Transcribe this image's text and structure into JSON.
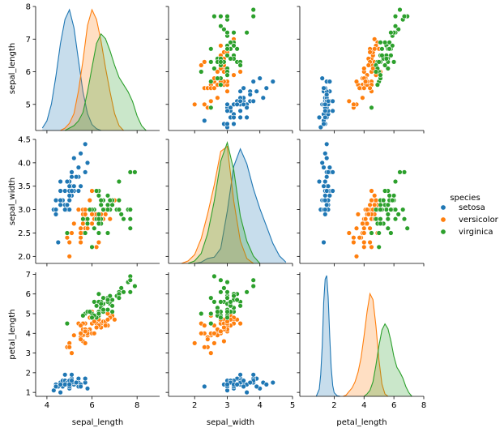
{
  "chart_data": {
    "type": "scatter",
    "variables": [
      "sepal_length",
      "sepal_width",
      "petal_length"
    ],
    "hue": "species",
    "legend": {
      "title": "species",
      "placement": "right"
    },
    "axes": {
      "sepal_length": {
        "label": "sepal_length",
        "lim": [
          3.5,
          9.0
        ],
        "ticks": [
          4,
          6,
          8
        ],
        "ytick_lim": [
          4.2,
          8.0
        ],
        "yticks": [
          5,
          6,
          7,
          8
        ]
      },
      "sepal_width": {
        "label": "sepal_width",
        "lim": [
          1.2,
          5.0
        ],
        "ticks": [
          2,
          3,
          4,
          5
        ],
        "ytick_lim": [
          1.85,
          4.5
        ],
        "yticks": [
          2.0,
          2.5,
          3.0,
          3.5,
          4.0,
          4.5
        ],
        "ytick_labels": [
          "2.0",
          "2.5",
          "3.0",
          "3.5",
          "4.0",
          "4.5"
        ]
      },
      "petal_length": {
        "label": "petal_length",
        "lim": [
          -0.3,
          8.0
        ],
        "ticks": [
          2,
          4,
          6,
          8
        ],
        "ytick_lim": [
          0.8,
          7.1
        ],
        "yticks": [
          1,
          2,
          3,
          4,
          5,
          6,
          7
        ]
      }
    },
    "series": [
      {
        "name": "setosa",
        "color": "#1f77b4",
        "points": [
          [
            5.1,
            3.5,
            1.4
          ],
          [
            4.9,
            3.0,
            1.4
          ],
          [
            4.7,
            3.2,
            1.3
          ],
          [
            4.6,
            3.1,
            1.5
          ],
          [
            5.0,
            3.6,
            1.4
          ],
          [
            5.4,
            3.9,
            1.7
          ],
          [
            4.6,
            3.4,
            1.4
          ],
          [
            5.0,
            3.4,
            1.5
          ],
          [
            4.4,
            2.9,
            1.4
          ],
          [
            4.9,
            3.1,
            1.5
          ],
          [
            5.4,
            3.7,
            1.5
          ],
          [
            4.8,
            3.4,
            1.6
          ],
          [
            4.8,
            3.0,
            1.4
          ],
          [
            4.3,
            3.0,
            1.1
          ],
          [
            5.8,
            4.0,
            1.2
          ],
          [
            5.7,
            4.4,
            1.5
          ],
          [
            5.4,
            3.9,
            1.3
          ],
          [
            5.1,
            3.5,
            1.4
          ],
          [
            5.7,
            3.8,
            1.7
          ],
          [
            5.1,
            3.8,
            1.5
          ],
          [
            5.4,
            3.4,
            1.7
          ],
          [
            5.1,
            3.7,
            1.5
          ],
          [
            4.6,
            3.6,
            1.0
          ],
          [
            5.1,
            3.3,
            1.7
          ],
          [
            4.8,
            3.4,
            1.9
          ],
          [
            5.0,
            3.0,
            1.6
          ],
          [
            5.0,
            3.4,
            1.6
          ],
          [
            5.2,
            3.5,
            1.5
          ],
          [
            5.2,
            3.4,
            1.4
          ],
          [
            4.7,
            3.2,
            1.6
          ],
          [
            4.8,
            3.1,
            1.6
          ],
          [
            5.4,
            3.4,
            1.5
          ],
          [
            5.2,
            4.1,
            1.5
          ],
          [
            5.5,
            4.2,
            1.4
          ],
          [
            4.9,
            3.1,
            1.5
          ],
          [
            5.0,
            3.2,
            1.2
          ],
          [
            5.5,
            3.5,
            1.3
          ],
          [
            4.9,
            3.6,
            1.4
          ],
          [
            4.4,
            3.0,
            1.3
          ],
          [
            5.1,
            3.4,
            1.5
          ],
          [
            5.0,
            3.5,
            1.3
          ],
          [
            4.5,
            2.3,
            1.3
          ],
          [
            4.4,
            3.2,
            1.3
          ],
          [
            5.0,
            3.5,
            1.6
          ],
          [
            5.1,
            3.8,
            1.9
          ],
          [
            4.8,
            3.0,
            1.4
          ],
          [
            5.1,
            3.8,
            1.6
          ],
          [
            4.6,
            3.2,
            1.4
          ],
          [
            5.3,
            3.7,
            1.5
          ],
          [
            5.0,
            3.3,
            1.4
          ]
        ],
        "kde": {
          "sepal_length": {
            "x": [
              3.8,
              4.0,
              4.2,
              4.4,
              4.6,
              4.8,
              5.0,
              5.2,
              5.4,
              5.6,
              5.8,
              6.0,
              6.2,
              6.4
            ],
            "y": [
              0.02,
              0.08,
              0.22,
              0.45,
              0.72,
              0.92,
              1.0,
              0.85,
              0.58,
              0.32,
              0.14,
              0.05,
              0.015,
              0.0
            ]
          },
          "sepal_width": {
            "x": [
              2.0,
              2.2,
              2.4,
              2.6,
              2.8,
              3.0,
              3.2,
              3.4,
              3.6,
              3.8,
              4.0,
              4.2,
              4.4,
              4.6,
              4.8
            ],
            "y": [
              0.0,
              0.01,
              0.04,
              0.05,
              0.12,
              0.42,
              0.78,
              0.92,
              0.8,
              0.6,
              0.44,
              0.3,
              0.16,
              0.06,
              0.01
            ]
          },
          "petal_length": {
            "x": [
              0.8,
              1.0,
              1.1,
              1.2,
              1.3,
              1.4,
              1.5,
              1.6,
              1.7,
              1.8,
              1.9,
              2.0,
              2.2,
              2.4
            ],
            "y": [
              0.0,
              0.06,
              0.18,
              0.42,
              0.78,
              0.97,
              1.0,
              0.82,
              0.5,
              0.24,
              0.09,
              0.03,
              0.005,
              0.0
            ]
          }
        }
      },
      {
        "name": "versicolor",
        "color": "#ff7f0e",
        "points": [
          [
            7.0,
            3.2,
            4.7
          ],
          [
            6.4,
            3.2,
            4.5
          ],
          [
            6.9,
            3.1,
            4.9
          ],
          [
            5.5,
            2.3,
            4.0
          ],
          [
            6.5,
            2.8,
            4.6
          ],
          [
            5.7,
            2.8,
            4.5
          ],
          [
            6.3,
            3.3,
            4.7
          ],
          [
            4.9,
            2.4,
            3.3
          ],
          [
            6.6,
            2.9,
            4.6
          ],
          [
            5.2,
            2.7,
            3.9
          ],
          [
            5.0,
            2.0,
            3.5
          ],
          [
            5.9,
            3.0,
            4.2
          ],
          [
            6.0,
            2.2,
            4.0
          ],
          [
            6.1,
            2.9,
            4.7
          ],
          [
            5.6,
            2.9,
            3.6
          ],
          [
            6.7,
            3.1,
            4.4
          ],
          [
            5.6,
            3.0,
            4.5
          ],
          [
            5.8,
            2.7,
            4.1
          ],
          [
            6.2,
            2.2,
            4.5
          ],
          [
            5.6,
            2.5,
            3.9
          ],
          [
            5.9,
            3.2,
            4.8
          ],
          [
            6.1,
            2.8,
            4.0
          ],
          [
            6.3,
            2.5,
            4.9
          ],
          [
            6.1,
            2.8,
            4.7
          ],
          [
            6.4,
            2.9,
            4.3
          ],
          [
            6.6,
            3.0,
            4.4
          ],
          [
            6.8,
            2.8,
            4.8
          ],
          [
            6.7,
            3.0,
            5.0
          ],
          [
            6.0,
            2.9,
            4.5
          ],
          [
            5.7,
            2.6,
            3.5
          ],
          [
            5.5,
            2.4,
            3.8
          ],
          [
            5.5,
            2.4,
            3.7
          ],
          [
            5.8,
            2.7,
            3.9
          ],
          [
            6.0,
            2.7,
            5.1
          ],
          [
            5.4,
            3.0,
            4.5
          ],
          [
            6.0,
            3.4,
            4.5
          ],
          [
            6.7,
            3.1,
            4.7
          ],
          [
            6.3,
            2.3,
            4.4
          ],
          [
            5.6,
            3.0,
            4.1
          ],
          [
            5.5,
            2.5,
            4.0
          ],
          [
            5.5,
            2.6,
            4.4
          ],
          [
            6.1,
            3.0,
            4.6
          ],
          [
            5.8,
            2.6,
            4.0
          ],
          [
            5.0,
            2.3,
            3.3
          ],
          [
            5.6,
            2.7,
            4.2
          ],
          [
            5.7,
            3.0,
            4.2
          ],
          [
            5.7,
            2.9,
            4.2
          ],
          [
            6.2,
            2.9,
            4.3
          ],
          [
            5.1,
            2.5,
            3.0
          ],
          [
            5.7,
            2.8,
            4.1
          ]
        ],
        "kde": {
          "sepal_length": {
            "x": [
              4.6,
              4.8,
              5.0,
              5.2,
              5.4,
              5.6,
              5.8,
              6.0,
              6.2,
              6.4,
              6.6,
              6.8,
              7.0,
              7.2,
              7.4
            ],
            "y": [
              0.0,
              0.02,
              0.06,
              0.14,
              0.33,
              0.58,
              0.87,
              1.0,
              0.92,
              0.74,
              0.52,
              0.32,
              0.14,
              0.04,
              0.0
            ]
          },
          "sepal_width": {
            "x": [
              1.6,
              1.8,
              2.0,
              2.2,
              2.4,
              2.6,
              2.8,
              3.0,
              3.2,
              3.4,
              3.6,
              3.8
            ],
            "y": [
              0.0,
              0.02,
              0.07,
              0.2,
              0.4,
              0.63,
              0.9,
              0.94,
              0.5,
              0.18,
              0.04,
              0.0
            ]
          },
          "petal_length": {
            "x": [
              2.6,
              2.8,
              3.0,
              3.2,
              3.4,
              3.6,
              3.8,
              4.0,
              4.2,
              4.4,
              4.6,
              4.8,
              5.0,
              5.2,
              5.4,
              5.6
            ],
            "y": [
              0.0,
              0.01,
              0.04,
              0.07,
              0.12,
              0.2,
              0.32,
              0.5,
              0.7,
              0.85,
              0.8,
              0.58,
              0.3,
              0.1,
              0.02,
              0.0
            ]
          }
        }
      },
      {
        "name": "virginica",
        "color": "#2ca02c",
        "points": [
          [
            6.3,
            3.3,
            6.0
          ],
          [
            5.8,
            2.7,
            5.1
          ],
          [
            7.1,
            3.0,
            5.9
          ],
          [
            6.3,
            2.9,
            5.6
          ],
          [
            6.5,
            3.0,
            5.8
          ],
          [
            7.6,
            3.0,
            6.6
          ],
          [
            4.9,
            2.5,
            4.5
          ],
          [
            7.3,
            2.9,
            6.3
          ],
          [
            6.7,
            2.5,
            5.8
          ],
          [
            7.2,
            3.6,
            6.1
          ],
          [
            6.5,
            3.2,
            5.1
          ],
          [
            6.4,
            2.7,
            5.3
          ],
          [
            6.8,
            3.0,
            5.5
          ],
          [
            5.7,
            2.5,
            5.0
          ],
          [
            5.8,
            2.8,
            5.1
          ],
          [
            6.4,
            3.2,
            5.3
          ],
          [
            6.5,
            3.0,
            5.5
          ],
          [
            7.7,
            3.8,
            6.7
          ],
          [
            7.7,
            2.6,
            6.9
          ],
          [
            6.0,
            2.2,
            5.0
          ],
          [
            6.9,
            3.2,
            5.7
          ],
          [
            5.6,
            2.8,
            4.9
          ],
          [
            7.7,
            2.8,
            6.7
          ],
          [
            6.3,
            2.7,
            4.9
          ],
          [
            6.7,
            3.3,
            5.7
          ],
          [
            7.2,
            3.2,
            6.0
          ],
          [
            6.2,
            2.8,
            4.8
          ],
          [
            6.1,
            3.0,
            4.9
          ],
          [
            6.4,
            2.8,
            5.6
          ],
          [
            7.2,
            3.0,
            5.8
          ],
          [
            7.4,
            2.8,
            6.1
          ],
          [
            7.9,
            3.8,
            6.4
          ],
          [
            6.4,
            2.8,
            5.6
          ],
          [
            6.3,
            2.8,
            5.1
          ],
          [
            6.1,
            2.6,
            5.6
          ],
          [
            7.7,
            3.0,
            6.1
          ],
          [
            6.3,
            3.4,
            5.6
          ],
          [
            6.4,
            3.1,
            5.5
          ],
          [
            6.0,
            3.0,
            4.8
          ],
          [
            6.9,
            3.1,
            5.4
          ],
          [
            6.7,
            3.1,
            5.6
          ],
          [
            6.9,
            3.1,
            5.1
          ],
          [
            5.8,
            2.7,
            5.1
          ],
          [
            6.8,
            3.2,
            5.9
          ],
          [
            6.7,
            3.3,
            5.7
          ],
          [
            6.7,
            3.0,
            5.2
          ],
          [
            6.3,
            2.5,
            5.0
          ],
          [
            6.5,
            3.0,
            5.2
          ],
          [
            6.2,
            3.4,
            5.4
          ],
          [
            5.9,
            3.0,
            5.1
          ]
        ],
        "kde": {
          "sepal_length": {
            "x": [
              4.8,
              5.0,
              5.2,
              5.4,
              5.6,
              5.8,
              6.0,
              6.2,
              6.4,
              6.6,
              6.8,
              7.0,
              7.2,
              7.4,
              7.6,
              7.8,
              8.0,
              8.2,
              8.4
            ],
            "y": [
              0.0,
              0.02,
              0.04,
              0.08,
              0.15,
              0.32,
              0.52,
              0.72,
              0.8,
              0.76,
              0.66,
              0.54,
              0.44,
              0.38,
              0.32,
              0.24,
              0.12,
              0.04,
              0.0
            ]
          },
          "sepal_width": {
            "x": [
              1.8,
              2.0,
              2.2,
              2.4,
              2.6,
              2.8,
              3.0,
              3.2,
              3.4,
              3.6,
              3.8,
              4.0
            ],
            "y": [
              0.0,
              0.02,
              0.08,
              0.24,
              0.5,
              0.82,
              0.97,
              0.75,
              0.38,
              0.18,
              0.06,
              0.0
            ]
          },
          "petal_length": {
            "x": [
              4.0,
              4.2,
              4.4,
              4.6,
              4.8,
              5.0,
              5.2,
              5.4,
              5.6,
              5.8,
              6.0,
              6.2,
              6.4,
              6.6,
              6.8,
              7.0,
              7.2
            ],
            "y": [
              0.0,
              0.02,
              0.05,
              0.12,
              0.26,
              0.42,
              0.55,
              0.6,
              0.56,
              0.46,
              0.33,
              0.24,
              0.2,
              0.15,
              0.08,
              0.03,
              0.0
            ]
          }
        }
      }
    ]
  }
}
